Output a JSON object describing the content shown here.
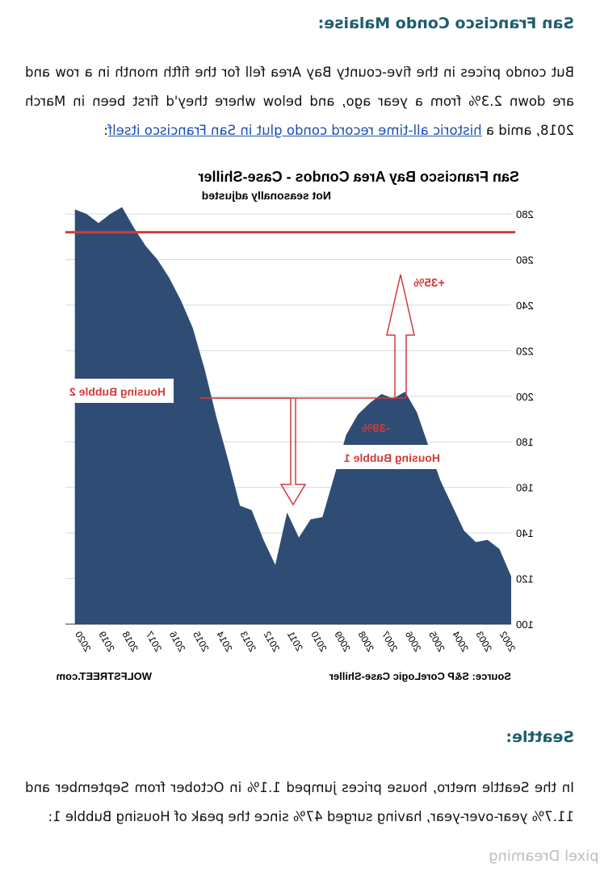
{
  "section1": {
    "heading": "San Francisco Condo Malaise:",
    "para_before": "But condo prices in the five-county Bay Area fell for the fifth month in a row and are down 2.3% from a year ago, and below where they'd first been in March 2018, amid a ",
    "link_text": "historic all-time record condo glut in San Francisco itself",
    "para_after": ":"
  },
  "chart_data": {
    "type": "area",
    "title": "San Francisco Bay Area Condos - Case-Shiller",
    "subtitle": "Not seasonally adjusted",
    "source": "Source: S&P CoreLogic Case-Shiller",
    "credit": "WOLFSTREET.com",
    "ylim": [
      100,
      280
    ],
    "yticks": [
      "100",
      "120",
      "140",
      "160",
      "180",
      "200",
      "220",
      "240",
      "260",
      "280"
    ],
    "xticks": [
      "2002",
      "2003",
      "2004",
      "2005",
      "2006",
      "2007",
      "2008",
      "2009",
      "2010",
      "2011",
      "2012",
      "2013",
      "2014",
      "2015",
      "2016",
      "2017",
      "2018",
      "2019",
      "2020"
    ],
    "series": [
      {
        "x": [
          2002.0,
          2002.5,
          2003.0,
          2003.5,
          2004.0,
          2004.5,
          2005.0,
          2005.5,
          2006.0,
          2006.5,
          2007.0,
          2007.5,
          2008.0,
          2008.5,
          2009.0,
          2009.5,
          2010.0,
          2010.5,
          2011.0,
          2011.5,
          2012.0,
          2012.5,
          2013.0,
          2013.5,
          2014.0,
          2014.5,
          2015.0,
          2015.5,
          2016.0,
          2016.5,
          2017.0,
          2017.5,
          2018.0,
          2018.5,
          2019.0,
          2019.5,
          2020.0,
          2020.5
        ],
        "values": [
          121,
          133,
          137,
          136,
          141,
          152,
          163,
          178,
          193,
          202,
          199,
          201,
          197,
          192,
          183,
          165,
          147,
          146,
          138,
          149,
          126,
          137,
          150,
          152,
          172,
          191,
          212,
          230,
          242,
          252,
          260,
          266,
          274,
          283,
          280,
          276,
          280,
          282
        ]
      }
    ],
    "reference_line": 272,
    "annotations": {
      "bubble2": "Housing Bubble 2",
      "bubble1": "Housing Bubble 1",
      "drop": "-39%",
      "rise": "+35%"
    },
    "colors": {
      "area": "#2f4d74",
      "refline": "#d23a3a",
      "annotation": "#d23a3a",
      "grid": "#d3dbe6"
    }
  },
  "section2": {
    "heading": "Seattle:",
    "para": "In the Seattle metro, house prices jumped 1.1% in October from September and 11.7% year-over-year, having surged 47% since the peak of Housing Bubble 1:"
  },
  "watermark": "Depixel Dreaming"
}
